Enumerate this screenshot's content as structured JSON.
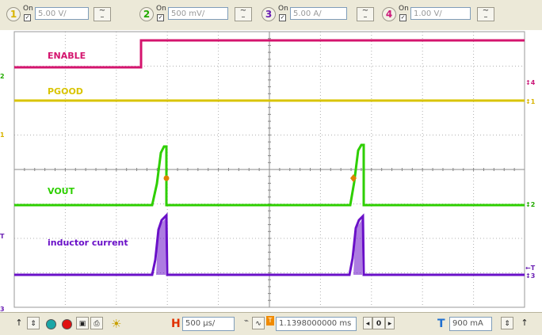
{
  "channels": [
    {
      "num": "1",
      "on_label": "On",
      "scale": "5.00 V/",
      "color": "#d8b400",
      "coupling": "~"
    },
    {
      "num": "2",
      "on_label": "On",
      "scale": "500 mV/",
      "color": "#22aa00",
      "coupling": "~"
    },
    {
      "num": "3",
      "on_label": "On",
      "scale": "5.00 A/",
      "color": "#6a1fb3",
      "coupling": "~"
    },
    {
      "num": "4",
      "on_label": "On",
      "scale": "1.00 V/",
      "color": "#cc1a7a",
      "coupling": "~"
    }
  ],
  "traces": {
    "enable": {
      "label": "ENABLE",
      "color": "#d4146e"
    },
    "pgood": {
      "label": "PGOOD",
      "color": "#d9c400"
    },
    "vout": {
      "label": "VOUT",
      "color": "#2ecf00"
    },
    "inductor": {
      "label": "inductor current",
      "color": "#6a10c8"
    }
  },
  "left_markers": {
    "m2": "2",
    "m1": "1",
    "mT": "T",
    "m3": "3"
  },
  "right_markers": {
    "r4": "4",
    "r1": "1",
    "r2": "2",
    "rT": "T",
    "r3": "3"
  },
  "marker_color": "#e08000",
  "bottom": {
    "h_label": "H",
    "timebase": "500 µs/",
    "position": "1.1398000000 ms",
    "t_label": "T",
    "trigger_level": "900 mA",
    "nav_center": "0"
  }
}
